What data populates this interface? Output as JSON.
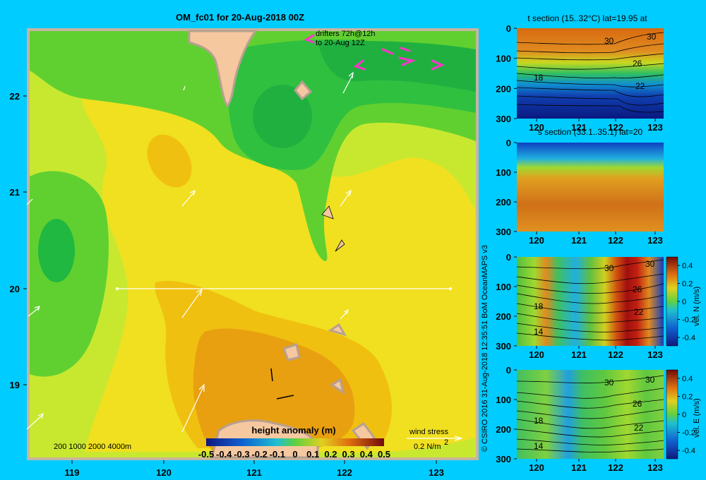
{
  "title": "OM_fc01 for 20-Aug-2018 00Z",
  "colors": {
    "background": "#00ccff",
    "frame": "#c8b4a0",
    "land": "#f5c8a0",
    "arrow": "#ffffff",
    "drifter": "#ff33cc",
    "section_line": "#ffffff"
  },
  "main_map": {
    "x_ticks": [
      "119",
      "120",
      "121",
      "122",
      "123"
    ],
    "y_ticks": [
      "22",
      "21",
      "20",
      "19"
    ],
    "drifters_text": [
      "drifters 72h@12h",
      "to 20-Aug 12Z"
    ],
    "depth_legend": "200  1000  2000  4000m",
    "wind_stress_title": "wind stress",
    "wind_stress_value": "0.2 N/m",
    "wind_stress_sup": "2"
  },
  "colorbar": {
    "title": "height anomaly (m)",
    "labels": [
      "-0.5",
      "-0.4",
      "-0.3",
      "-0.2",
      "-0.1",
      "0",
      "0.1",
      "0.2",
      "0.3",
      "0.4",
      "0.5"
    ]
  },
  "credit": "© CSIRO 2016   31-Aug-2018 12:35:51 BoM OceanMAPS v3",
  "sections": [
    {
      "title": "t section (15..32°C) lat=19.95 at",
      "x_ticks": [
        "120",
        "121",
        "122",
        "123"
      ],
      "y_ticks": [
        "0",
        "100",
        "200",
        "300"
      ],
      "contour_labels": [
        "30",
        "30",
        "26",
        "22",
        "18"
      ]
    },
    {
      "title": "s section (33.1..35.1) lat=20",
      "x_ticks": [
        "120",
        "121",
        "122",
        "123"
      ],
      "y_ticks": [
        "0",
        "100",
        "200",
        "300"
      ]
    },
    {
      "title": "",
      "x_ticks": [
        "120",
        "121",
        "122",
        "123"
      ],
      "y_ticks": [
        "0",
        "100",
        "200",
        "300"
      ],
      "contour_labels": [
        "30",
        "30",
        "26",
        "22",
        "18",
        "14"
      ],
      "cbar_label": "vel. N (m/s)",
      "cbar_ticks": [
        "0.4",
        "0.2",
        "0",
        "-0.2",
        "-0.4"
      ]
    },
    {
      "title": "",
      "x_ticks": [
        "120",
        "121",
        "122",
        "123"
      ],
      "y_ticks": [
        "0",
        "100",
        "200",
        "300"
      ],
      "contour_labels": [
        "30",
        "30",
        "26",
        "22",
        "18",
        "14"
      ],
      "cbar_label": "vel. E (m/s)",
      "cbar_ticks": [
        "0.4",
        "0.2",
        "0",
        "-0.2",
        "-0.4"
      ]
    }
  ]
}
